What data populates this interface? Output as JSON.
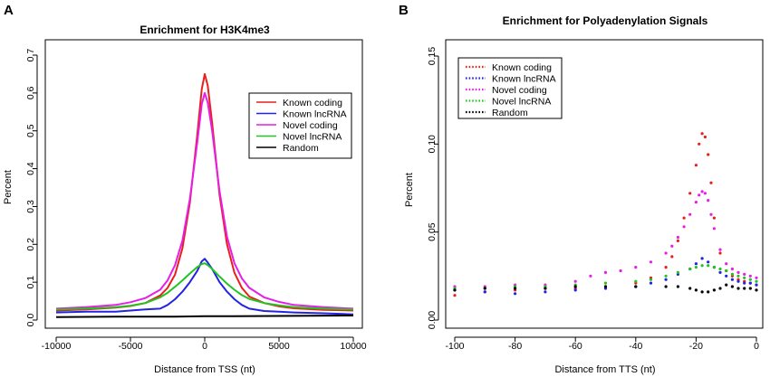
{
  "panels": [
    {
      "label": "A",
      "chart_data": {
        "type": "line",
        "title": "Enrichment for H3K4me3",
        "xlabel": "Distance from TSS (nt)",
        "ylabel": "Percent",
        "xlim": [
          -10000,
          10000
        ],
        "ylim": [
          0,
          0.72
        ],
        "xticks": [
          -10000,
          -5000,
          0,
          5000,
          10000
        ],
        "xtick_labels": [
          "-10000",
          "-5000",
          "0",
          "5000",
          "10000"
        ],
        "yticks": [
          0,
          0.1,
          0.2,
          0.3,
          0.4,
          0.5,
          0.6,
          0.7
        ],
        "ytick_labels": [
          "0.0",
          "0.1",
          "0.2",
          "0.3",
          "0.4",
          "0.5",
          "0.6",
          "0.7"
        ],
        "legend_position": "top-right",
        "legend_style": "line",
        "series": [
          {
            "name": "Known coding",
            "color": "#e8201c",
            "x": [
              -10000,
              -8000,
              -6000,
              -5000,
              -4000,
              -3000,
              -2500,
              -2000,
              -1500,
              -1000,
              -500,
              -200,
              0,
              200,
              500,
              1000,
              1500,
              2000,
              2500,
              3000,
              4000,
              5000,
              6000,
              8000,
              10000
            ],
            "y": [
              0.025,
              0.028,
              0.033,
              0.037,
              0.045,
              0.065,
              0.085,
              0.12,
              0.19,
              0.31,
              0.49,
              0.61,
              0.65,
              0.62,
              0.52,
              0.33,
              0.2,
              0.125,
              0.085,
              0.062,
              0.045,
              0.036,
              0.031,
              0.027,
              0.025
            ]
          },
          {
            "name": "Known lncRNA",
            "color": "#2323e6",
            "x": [
              -10000,
              -8000,
              -6000,
              -5000,
              -4000,
              -3000,
              -2500,
              -2000,
              -1500,
              -1000,
              -500,
              -200,
              0,
              200,
              500,
              1000,
              1500,
              2000,
              2500,
              3000,
              4000,
              5000,
              6000,
              8000,
              10000
            ],
            "y": [
              0.02,
              0.022,
              0.022,
              0.025,
              0.028,
              0.03,
              0.04,
              0.055,
              0.075,
              0.1,
              0.13,
              0.155,
              0.162,
              0.152,
              0.135,
              0.1,
              0.075,
              0.055,
              0.04,
              0.03,
              0.024,
              0.022,
              0.02,
              0.018,
              0.015
            ]
          },
          {
            "name": "Novel coding",
            "color": "#e61ee6",
            "x": [
              -10000,
              -8000,
              -6000,
              -5000,
              -4000,
              -3000,
              -2500,
              -2000,
              -1500,
              -1000,
              -500,
              -200,
              0,
              200,
              500,
              1000,
              1500,
              2000,
              2500,
              3000,
              4000,
              5000,
              6000,
              8000,
              10000
            ],
            "y": [
              0.03,
              0.034,
              0.04,
              0.047,
              0.058,
              0.08,
              0.105,
              0.145,
              0.21,
              0.32,
              0.47,
              0.57,
              0.6,
              0.575,
              0.5,
              0.34,
              0.22,
              0.15,
              0.11,
              0.085,
              0.06,
              0.048,
              0.04,
              0.034,
              0.03
            ]
          },
          {
            "name": "Novel lncRNA",
            "color": "#22c322",
            "x": [
              -10000,
              -8000,
              -6000,
              -5000,
              -4000,
              -3000,
              -2500,
              -2000,
              -1500,
              -1000,
              -500,
              -200,
              0,
              200,
              500,
              1000,
              1500,
              2000,
              2500,
              3000,
              4000,
              5000,
              6000,
              8000,
              10000
            ],
            "y": [
              0.028,
              0.03,
              0.034,
              0.038,
              0.045,
              0.06,
              0.072,
              0.088,
              0.105,
              0.123,
              0.14,
              0.148,
              0.15,
              0.145,
              0.135,
              0.115,
              0.096,
              0.08,
              0.066,
              0.056,
              0.045,
              0.039,
              0.034,
              0.03,
              0.028
            ]
          },
          {
            "name": "Random",
            "color": "#000000",
            "x": [
              -10000,
              -6000,
              -2000,
              0,
              2000,
              6000,
              10000
            ],
            "y": [
              0.008,
              0.009,
              0.009,
              0.01,
              0.01,
              0.011,
              0.012
            ]
          }
        ]
      }
    },
    {
      "label": "B",
      "chart_data": {
        "type": "scatter",
        "title": "Enrichment for Polyadenylation Signals",
        "xlabel": "Distance from TTS (nt)",
        "ylabel": "Percent",
        "xlim": [
          -100,
          0
        ],
        "ylim": [
          0,
          0.15
        ],
        "xticks": [
          -100,
          -80,
          -60,
          -40,
          -20,
          0
        ],
        "xtick_labels": [
          "-100",
          "-80",
          "-60",
          "-40",
          "-20",
          "0"
        ],
        "yticks": [
          0,
          0.05,
          0.1,
          0.15
        ],
        "ytick_labels": [
          "0.00",
          "0.05",
          "0.10",
          "0.15"
        ],
        "legend_position": "top-left",
        "legend_style": "dotted",
        "series": [
          {
            "name": "Known coding",
            "color": "#e8201c",
            "x": [
              -100,
              -90,
              -80,
              -70,
              -60,
              -50,
              -40,
              -35,
              -30,
              -28,
              -26,
              -24,
              -22,
              -20,
              -19,
              -18,
              -17,
              -16,
              -15,
              -14,
              -12,
              -10,
              -8,
              -6,
              -4,
              -2,
              0
            ],
            "y": [
              0.014,
              0.016,
              0.017,
              0.018,
              0.018,
              0.019,
              0.021,
              0.024,
              0.03,
              0.036,
              0.045,
              0.058,
              0.072,
              0.088,
              0.1,
              0.106,
              0.104,
              0.094,
              0.078,
              0.058,
              0.038,
              0.028,
              0.025,
              0.023,
              0.022,
              0.021,
              0.02
            ]
          },
          {
            "name": "Known lncRNA",
            "color": "#2323e6",
            "x": [
              -100,
              -90,
              -80,
              -70,
              -60,
              -50,
              -40,
              -35,
              -30,
              -26,
              -22,
              -20,
              -18,
              -16,
              -14,
              -12,
              -10,
              -8,
              -6,
              -4,
              -2,
              0
            ],
            "y": [
              0.017,
              0.016,
              0.015,
              0.016,
              0.017,
              0.018,
              0.019,
              0.021,
              0.023,
              0.026,
              0.029,
              0.032,
              0.035,
              0.033,
              0.03,
              0.027,
              0.025,
              0.023,
              0.022,
              0.021,
              0.021,
              0.02
            ]
          },
          {
            "name": "Novel coding",
            "color": "#e61ee6",
            "x": [
              -100,
              -90,
              -80,
              -70,
              -60,
              -55,
              -50,
              -45,
              -40,
              -35,
              -30,
              -28,
              -26,
              -24,
              -22,
              -20,
              -19,
              -18,
              -17,
              -16,
              -15,
              -14,
              -12,
              -10,
              -8,
              -6,
              -4,
              -2,
              0
            ],
            "y": [
              0.019,
              0.019,
              0.02,
              0.02,
              0.022,
              0.025,
              0.027,
              0.028,
              0.03,
              0.033,
              0.038,
              0.042,
              0.047,
              0.053,
              0.06,
              0.067,
              0.071,
              0.073,
              0.072,
              0.068,
              0.06,
              0.052,
              0.04,
              0.032,
              0.029,
              0.027,
              0.026,
              0.025,
              0.024
            ]
          },
          {
            "name": "Novel lncRNA",
            "color": "#22c322",
            "x": [
              -100,
              -90,
              -80,
              -70,
              -60,
              -50,
              -40,
              -35,
              -30,
              -26,
              -22,
              -20,
              -18,
              -16,
              -14,
              -12,
              -10,
              -8,
              -6,
              -4,
              -2,
              0
            ],
            "y": [
              0.018,
              0.018,
              0.019,
              0.019,
              0.02,
              0.021,
              0.022,
              0.023,
              0.025,
              0.027,
              0.029,
              0.03,
              0.031,
              0.031,
              0.03,
              0.029,
              0.028,
              0.026,
              0.025,
              0.024,
              0.023,
              0.022
            ]
          },
          {
            "name": "Random",
            "color": "#000000",
            "x": [
              -100,
              -90,
              -80,
              -70,
              -60,
              -50,
              -40,
              -30,
              -26,
              -22,
              -20,
              -18,
              -16,
              -14,
              -12,
              -10,
              -8,
              -6,
              -4,
              -2,
              0
            ],
            "y": [
              0.017,
              0.018,
              0.018,
              0.018,
              0.019,
              0.019,
              0.019,
              0.019,
              0.019,
              0.018,
              0.017,
              0.016,
              0.016,
              0.017,
              0.018,
              0.02,
              0.019,
              0.018,
              0.018,
              0.018,
              0.017
            ]
          }
        ]
      }
    }
  ]
}
